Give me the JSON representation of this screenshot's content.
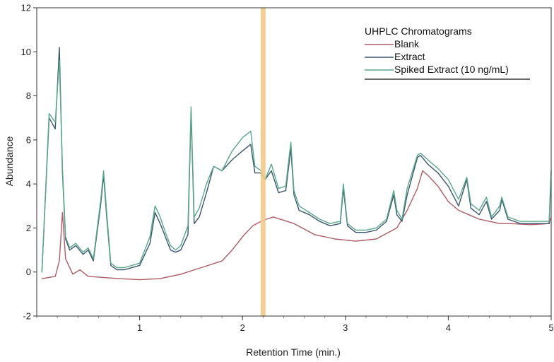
{
  "chart_data": {
    "type": "line",
    "title": "",
    "xlabel": "Retention Time (min.)",
    "ylabel": "Abundance",
    "xlim": [
      0,
      5
    ],
    "ylim": [
      -2,
      12
    ],
    "x_ticks": [
      1,
      2,
      3,
      4,
      5
    ],
    "y_ticks": [
      -2,
      0,
      2,
      4,
      6,
      8,
      10,
      12
    ],
    "marker_line": {
      "x": 2.2,
      "color": "#f2c98a"
    },
    "legend": {
      "title": "UHPLC Chromatograms",
      "placement": "top-right"
    },
    "series": [
      {
        "name": "Blank",
        "color": "#b05a66",
        "x": [
          0.05,
          0.18,
          0.22,
          0.25,
          0.28,
          0.35,
          0.42,
          0.5,
          0.8,
          1.0,
          1.2,
          1.4,
          1.6,
          1.8,
          1.9,
          2.0,
          2.1,
          2.2,
          2.3,
          2.5,
          2.7,
          2.9,
          3.1,
          3.3,
          3.5,
          3.6,
          3.7,
          3.75,
          3.8,
          3.9,
          4.0,
          4.1,
          4.2,
          4.3,
          4.4,
          4.5,
          4.6,
          4.8,
          4.98,
          5.0
        ],
        "values": [
          -0.3,
          -0.2,
          0.5,
          2.7,
          0.6,
          -0.1,
          0.1,
          -0.2,
          -0.3,
          -0.35,
          -0.3,
          -0.1,
          0.2,
          0.5,
          1.0,
          1.6,
          2.1,
          2.35,
          2.5,
          2.2,
          1.7,
          1.5,
          1.4,
          1.5,
          2.0,
          2.8,
          3.8,
          4.6,
          4.4,
          3.9,
          3.2,
          2.8,
          2.6,
          2.4,
          2.3,
          2.2,
          2.2,
          2.15,
          2.2,
          2.5
        ]
      },
      {
        "name": "Extract",
        "color": "#3a5570",
        "x": [
          0.05,
          0.12,
          0.18,
          0.22,
          0.25,
          0.28,
          0.32,
          0.38,
          0.45,
          0.5,
          0.55,
          0.62,
          0.65,
          0.68,
          0.72,
          0.78,
          0.85,
          1.0,
          1.1,
          1.15,
          1.2,
          1.25,
          1.3,
          1.35,
          1.4,
          1.47,
          1.5,
          1.53,
          1.58,
          1.65,
          1.72,
          1.8,
          1.9,
          2.0,
          2.08,
          2.12,
          2.18,
          2.22,
          2.28,
          2.35,
          2.42,
          2.47,
          2.5,
          2.55,
          2.65,
          2.75,
          2.85,
          2.95,
          2.98,
          3.02,
          3.1,
          3.2,
          3.3,
          3.4,
          3.47,
          3.5,
          3.55,
          3.6,
          3.7,
          3.73,
          3.8,
          3.9,
          4.0,
          4.1,
          4.18,
          4.22,
          4.3,
          4.37,
          4.42,
          4.5,
          4.52,
          4.58,
          4.7,
          4.85,
          4.98,
          5.0
        ],
        "values": [
          0.0,
          7.0,
          6.5,
          10.2,
          4.5,
          1.5,
          1.0,
          1.2,
          0.8,
          1.0,
          0.5,
          3.0,
          4.4,
          2.5,
          0.3,
          0.1,
          0.1,
          0.3,
          1.3,
          2.7,
          2.2,
          1.6,
          1.0,
          0.9,
          1.0,
          1.7,
          7.3,
          2.2,
          2.5,
          3.6,
          4.8,
          4.6,
          5.1,
          5.5,
          5.8,
          4.5,
          4.5,
          4.2,
          4.6,
          3.6,
          3.7,
          5.6,
          3.5,
          2.8,
          2.6,
          2.3,
          2.1,
          2.2,
          3.8,
          2.1,
          1.8,
          1.8,
          1.9,
          2.3,
          3.5,
          2.6,
          2.3,
          3.5,
          5.2,
          5.3,
          4.9,
          4.5,
          3.9,
          3.0,
          4.2,
          2.9,
          2.6,
          3.2,
          2.4,
          2.8,
          3.3,
          2.4,
          2.2,
          2.2,
          2.2,
          4.5
        ]
      },
      {
        "name": "Spiked Extract (10 ng/mL)",
        "color": "#58a88a",
        "x": [
          0.05,
          0.12,
          0.18,
          0.22,
          0.25,
          0.28,
          0.32,
          0.38,
          0.45,
          0.5,
          0.55,
          0.62,
          0.65,
          0.68,
          0.72,
          0.78,
          0.85,
          1.0,
          1.1,
          1.15,
          1.2,
          1.25,
          1.3,
          1.35,
          1.4,
          1.47,
          1.5,
          1.53,
          1.58,
          1.65,
          1.72,
          1.8,
          1.9,
          2.0,
          2.08,
          2.12,
          2.18,
          2.22,
          2.28,
          2.35,
          2.42,
          2.47,
          2.5,
          2.55,
          2.65,
          2.75,
          2.85,
          2.95,
          2.98,
          3.02,
          3.1,
          3.2,
          3.3,
          3.4,
          3.47,
          3.5,
          3.55,
          3.6,
          3.7,
          3.73,
          3.8,
          3.9,
          4.0,
          4.1,
          4.18,
          4.22,
          4.3,
          4.37,
          4.42,
          4.5,
          4.52,
          4.58,
          4.7,
          4.85,
          4.98,
          5.0
        ],
        "values": [
          0.0,
          7.2,
          6.8,
          9.6,
          4.7,
          1.6,
          1.1,
          1.3,
          0.9,
          1.1,
          0.6,
          3.2,
          4.6,
          2.7,
          0.4,
          0.2,
          0.2,
          0.4,
          1.6,
          3.0,
          2.5,
          1.8,
          1.2,
          1.0,
          1.2,
          2.1,
          7.5,
          2.5,
          2.9,
          4.0,
          4.8,
          4.6,
          5.5,
          6.1,
          6.4,
          4.8,
          4.6,
          4.2,
          4.9,
          3.8,
          3.9,
          5.9,
          3.7,
          3.0,
          2.7,
          2.4,
          2.2,
          2.3,
          4.0,
          2.2,
          1.9,
          1.9,
          2.0,
          2.4,
          3.7,
          2.8,
          2.4,
          3.8,
          5.3,
          5.4,
          5.1,
          4.7,
          4.2,
          3.3,
          4.3,
          3.1,
          2.8,
          3.4,
          2.5,
          3.0,
          3.4,
          2.5,
          2.3,
          2.3,
          2.3,
          4.6
        ]
      }
    ]
  }
}
